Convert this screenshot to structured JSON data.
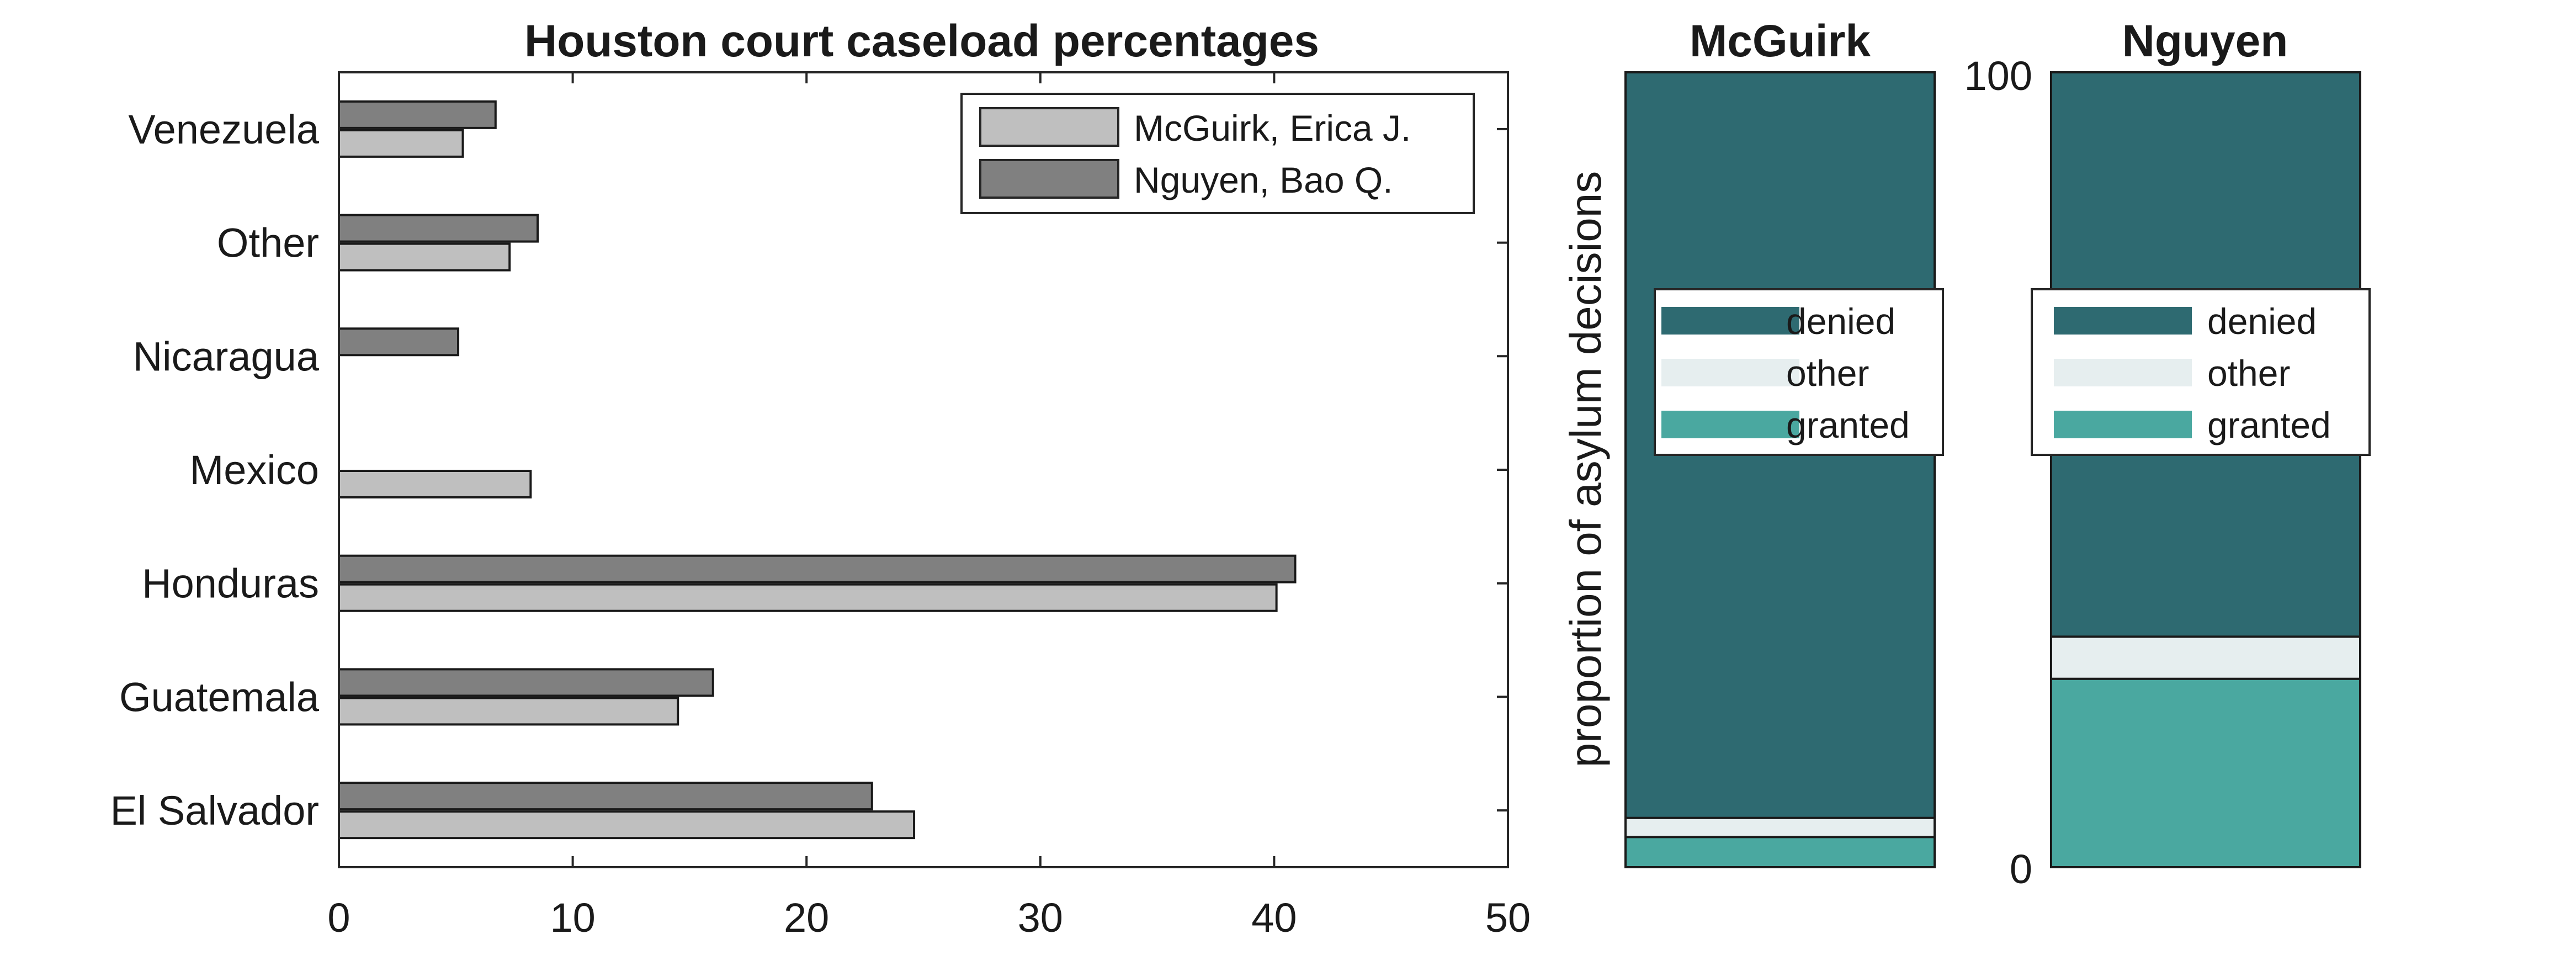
{
  "chart_data": [
    {
      "type": "bar",
      "orientation": "horizontal",
      "title": "Houston court caseload percentages",
      "categories": [
        "El Salvador",
        "Guatemala",
        "Honduras",
        "Mexico",
        "Nicaragua",
        "Other",
        "Venezuela"
      ],
      "series": [
        {
          "name": "McGuirk, Erica J.",
          "values": [
            24.6,
            14.5,
            40.1,
            8.2,
            0.0,
            7.3,
            5.3
          ],
          "color": "#bfbfbf"
        },
        {
          "name": "Nguyen, Bao Q.",
          "values": [
            22.8,
            16.0,
            40.9,
            0.0,
            5.1,
            8.5,
            6.7
          ],
          "color": "#808080"
        }
      ],
      "xlim": [
        0,
        50
      ],
      "xticks": [
        "0",
        "10",
        "20",
        "30",
        "40",
        "50"
      ],
      "legend_position": "top-right",
      "grid": false
    },
    {
      "type": "bar",
      "stacked": true,
      "title": "McGuirk",
      "ylabel": "proportion of asylum decisions",
      "ylim": [
        0,
        100
      ],
      "segments": [
        {
          "name": "granted",
          "value": 3.8,
          "color": "#4aa8a0"
        },
        {
          "name": "other",
          "value": 2.4,
          "color": "#e6eeef"
        },
        {
          "name": "denied",
          "value": 93.8,
          "color": "#2e6a71"
        }
      ],
      "legend_position": "center"
    },
    {
      "type": "bar",
      "stacked": true,
      "title": "Nguyen",
      "ylim": [
        0,
        100
      ],
      "yticks": [
        "0",
        "100"
      ],
      "segments": [
        {
          "name": "granted",
          "value": 23.7,
          "color": "#4aa8a0"
        },
        {
          "name": "other",
          "value": 5.3,
          "color": "#e6eeef"
        },
        {
          "name": "denied",
          "value": 71.0,
          "color": "#2e6a71"
        }
      ],
      "legend_position": "center"
    }
  ]
}
